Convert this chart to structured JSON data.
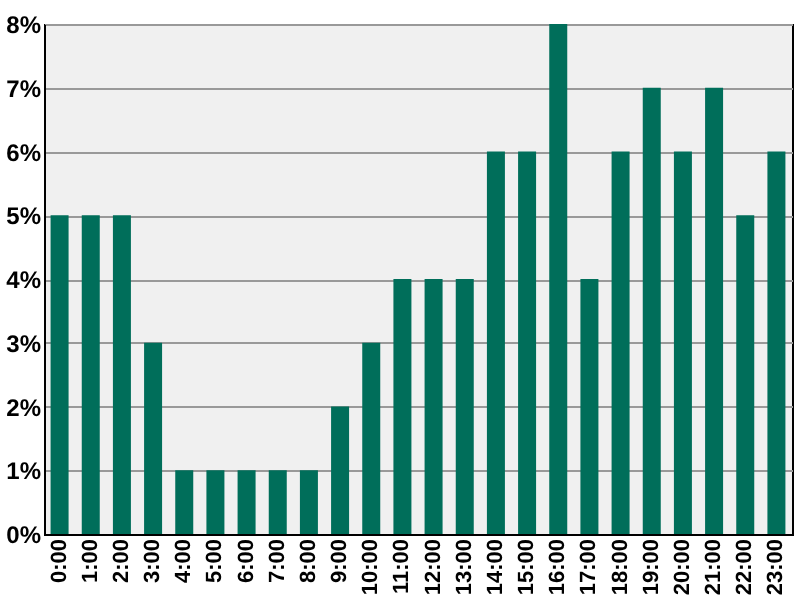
{
  "chart_data": {
    "type": "bar",
    "categories": [
      "0:00",
      "1:00",
      "2:00",
      "3:00",
      "4:00",
      "5:00",
      "6:00",
      "7:00",
      "8:00",
      "9:00",
      "10:00",
      "11:00",
      "12:00",
      "13:00",
      "14:00",
      "15:00",
      "16:00",
      "17:00",
      "18:00",
      "19:00",
      "20:00",
      "21:00",
      "22:00",
      "23:00"
    ],
    "values": [
      5,
      5,
      5,
      3,
      1,
      1,
      1,
      1,
      1,
      2,
      3,
      4,
      4,
      4,
      6,
      6,
      8,
      4,
      6,
      7,
      6,
      7,
      5,
      6
    ],
    "color": "#006e5a",
    "ylim": [
      0,
      8
    ],
    "yticks": [
      {
        "value": 0,
        "label": "0%"
      },
      {
        "value": 1,
        "label": "1%"
      },
      {
        "value": 2,
        "label": "2%"
      },
      {
        "value": 3,
        "label": "3%"
      },
      {
        "value": 4,
        "label": "4%"
      },
      {
        "value": 5,
        "label": "5%"
      },
      {
        "value": 6,
        "label": "6%"
      },
      {
        "value": 7,
        "label": "7%"
      },
      {
        "value": 8,
        "label": "8%"
      }
    ],
    "grid": "y"
  }
}
